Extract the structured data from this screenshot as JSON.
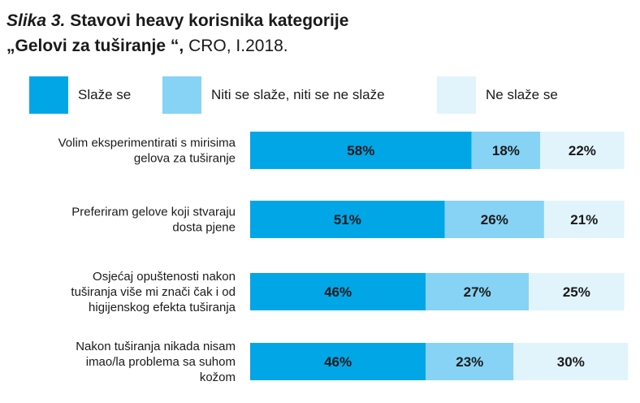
{
  "title": {
    "prefix": "Slika 3.",
    "line1": "Stavovi heavy korisnika kategorije",
    "line2_bold": "„Gelovi za tuširanje “,",
    "line2_normal": "CRO, I.2018."
  },
  "colors": {
    "agree": "#00a6e6",
    "neutral": "#86d3f5",
    "disagree": "#e1f4fc"
  },
  "chart_data": {
    "type": "bar",
    "orientation": "horizontal",
    "stacked": true,
    "percent": true,
    "xlim": [
      0,
      100
    ],
    "grid": false,
    "legend_position": "top",
    "categories": [
      [
        "Volim eksperimentirati s mirisima",
        "gelova za tuširanje"
      ],
      [
        "Preferiram gelove koji stvaraju",
        "dosta pjene"
      ],
      [
        "Osjećaj opuštenosti nakon",
        "tuširanja više mi znači čak i od",
        "higijenskog efekta tuširanja"
      ],
      [
        "Nakon tuširanja nikada nisam",
        "imao/la problema sa suhom",
        "kožom"
      ]
    ],
    "series": [
      {
        "name": "Slaže se",
        "values": [
          58,
          51,
          46,
          46
        ],
        "labels": [
          "58%",
          "51%",
          "46%",
          "46%"
        ]
      },
      {
        "name": "Niti se slaže, niti se ne slaže",
        "values": [
          18,
          26,
          27,
          23
        ],
        "labels": [
          "18%",
          "26%",
          "27%",
          "23%"
        ]
      },
      {
        "name": "Ne slaže se",
        "values": [
          22,
          21,
          25,
          30
        ],
        "labels": [
          "22%",
          "21%",
          "25%",
          "30%"
        ]
      }
    ]
  }
}
